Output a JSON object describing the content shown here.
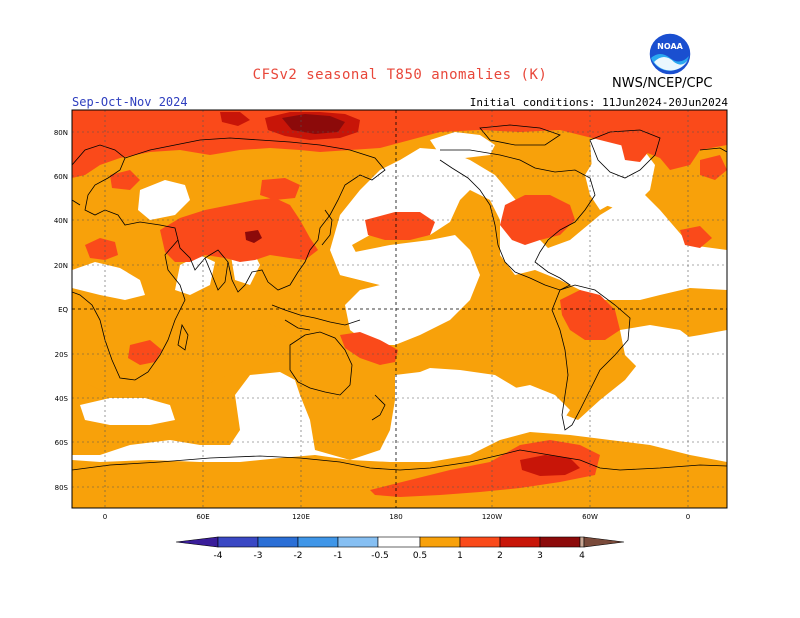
{
  "header": {
    "title": "CFSv2 seasonal T850 anomalies (K)",
    "season": "Sep-Oct-Nov 2024",
    "initial_conditions": "Initial conditions: 11Jun2024-20Jun2024",
    "credit": "NWS/NCEP/CPC",
    "logo_icon": "noaa-logo-icon",
    "logo_text": "NOAA"
  },
  "map": {
    "projection": "cylindrical-equidistant",
    "lon_labels": [
      "0",
      "60E",
      "120E",
      "180",
      "120W",
      "60W",
      "0"
    ],
    "lat_labels": [
      "80N",
      "60N",
      "40N",
      "20N",
      "EQ",
      "20S",
      "40S",
      "60S",
      "80S"
    ]
  },
  "colorbar": {
    "labels": [
      "-4",
      "-3",
      "-2",
      "-1",
      "-0.5",
      "0.5",
      "1",
      "2",
      "3",
      "4"
    ],
    "colors": [
      "#3a1d9a",
      "#3a48c4",
      "#2b6fd6",
      "#3f96e8",
      "#86bff2",
      "#ffffff",
      "#f8a10a",
      "#fa4a1a",
      "#c81508",
      "#8c0a0a",
      "#c9a592",
      "#7a4a3a"
    ]
  },
  "anomaly_colors": {
    "0.5_to_1": "#f8a10a",
    "1_to_2": "#fa4a1a",
    "2_to_3": "#c81508",
    "3_to_4": "#8c0a0a"
  }
}
